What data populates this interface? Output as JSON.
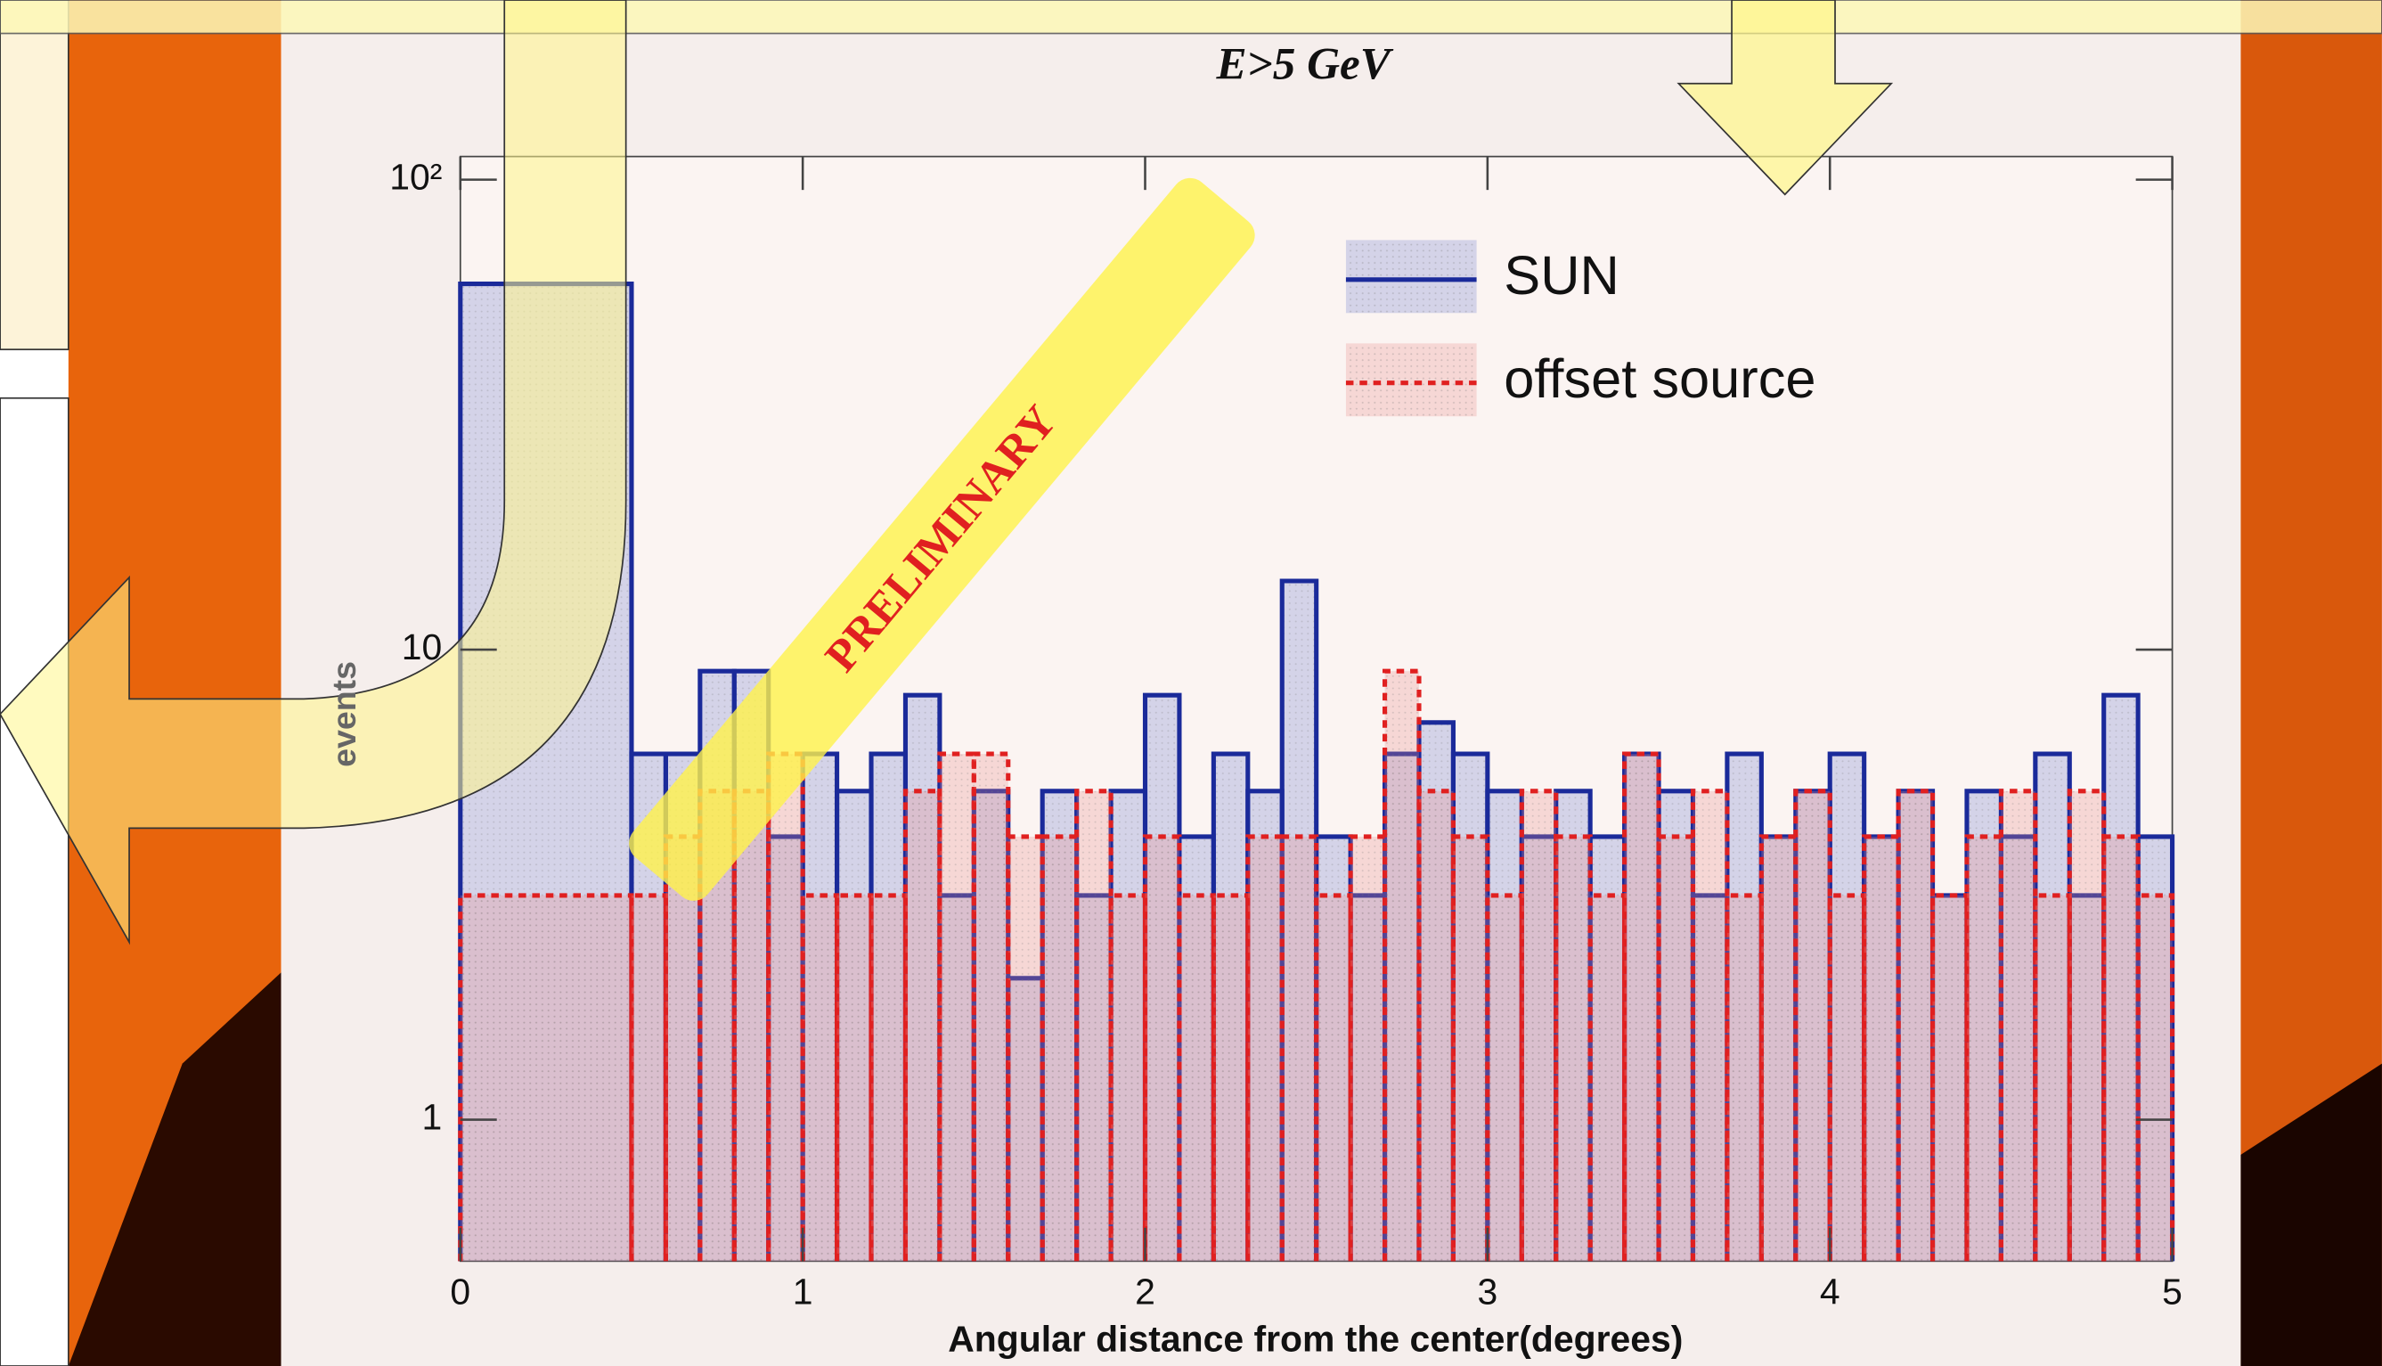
{
  "chart_data": {
    "type": "histogram",
    "title": "E>5 GeV",
    "x_label": "Angular distance from the center(degrees)",
    "y_label": "events",
    "annotation": "PRELIMINARY",
    "bins": [
      0,
      0.5,
      0.6,
      0.7,
      0.8,
      0.9,
      1.0,
      1.1,
      1.2,
      1.3,
      1.4,
      1.5,
      1.6,
      1.7,
      1.8,
      1.9,
      2.0,
      2.1,
      2.2,
      2.3,
      2.4,
      2.5,
      2.6,
      2.7,
      2.8,
      2.9,
      3.0,
      3.1,
      3.2,
      3.3,
      3.4,
      3.5,
      3.6,
      3.7,
      3.8,
      3.9,
      4.0,
      4.1,
      4.2,
      4.3,
      4.4,
      4.5,
      4.6,
      4.7,
      4.8,
      4.9,
      5.0
    ],
    "series": [
      {
        "name": "SUN",
        "color": "#1a2a9a",
        "line_style": "solid",
        "values": [
          60,
          6,
          6,
          9,
          9,
          4,
          6,
          5,
          6,
          8,
          3,
          5,
          2,
          5,
          3,
          5,
          8,
          4,
          6,
          5,
          14,
          4,
          3,
          6,
          7,
          6,
          5,
          4,
          5,
          4,
          6,
          5,
          3,
          6,
          4,
          5,
          6,
          4,
          5,
          3,
          5,
          4,
          6,
          3,
          8,
          4
        ]
      },
      {
        "name": "offset source",
        "color": "#e02020",
        "line_style": "dashed",
        "values": [
          3,
          3,
          4,
          5,
          5,
          6,
          3,
          3,
          3,
          5,
          6,
          6,
          4,
          4,
          5,
          3,
          4,
          3,
          3,
          4,
          4,
          3,
          4,
          9,
          5,
          4,
          3,
          5,
          4,
          3,
          6,
          4,
          5,
          3,
          4,
          5,
          3,
          4,
          5,
          3,
          4,
          5,
          3,
          5,
          4,
          3
        ]
      }
    ],
    "xlim": [
      0,
      5
    ],
    "xticks": [
      0,
      1,
      2,
      3,
      4,
      5
    ],
    "ylim": [
      0.5,
      112
    ],
    "log_y": true,
    "yticks": [
      1,
      10,
      {
        "value": 100,
        "label": "10²"
      }
    ],
    "legend": "upper right"
  }
}
